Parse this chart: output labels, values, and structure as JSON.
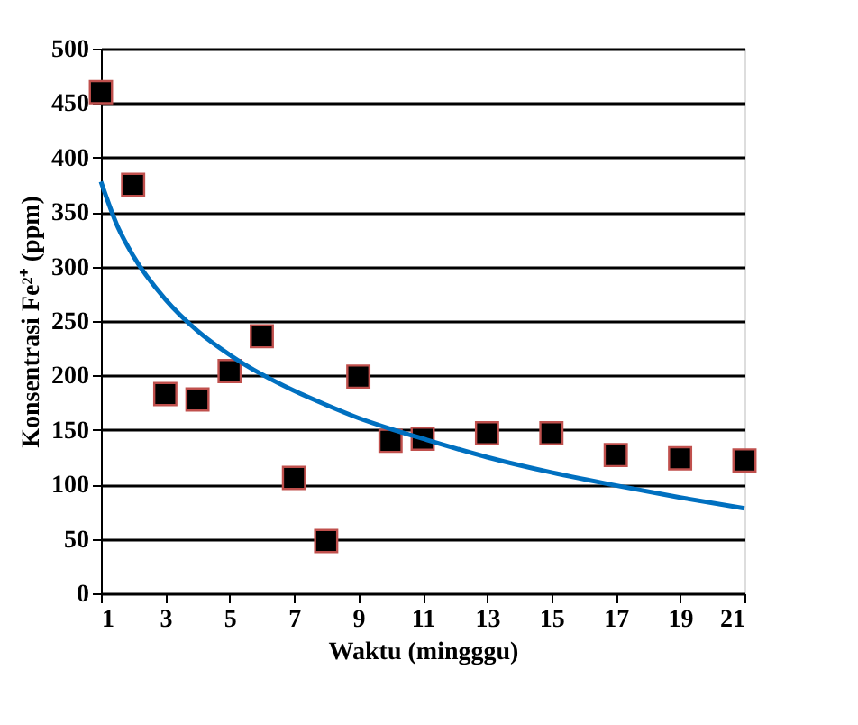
{
  "chart_data": {
    "type": "scatter",
    "xlabel": "Waktu (mingggu)",
    "ylabel": "Konsentrasi Fe²⁺ (ppm)",
    "xlim": [
      1,
      21
    ],
    "xticks": [
      1,
      3,
      5,
      7,
      9,
      11,
      13,
      15,
      17,
      19,
      21
    ],
    "ylim": [
      0,
      500
    ],
    "yticks": [
      0,
      50,
      100,
      150,
      200,
      250,
      300,
      350,
      400,
      450,
      500
    ],
    "grid": "y",
    "marker": "square",
    "series": [
      {
        "color": "#000000",
        "x": [
          1,
          2,
          3,
          4,
          5,
          6,
          7,
          8,
          9,
          10,
          11,
          13,
          15,
          17,
          19,
          21
        ],
        "values": [
          460,
          375,
          183,
          178,
          204,
          236,
          106,
          48,
          199,
          140,
          142,
          147,
          147,
          127,
          124,
          122
        ]
      },
      {
        "type": "line",
        "color": "#0070c0",
        "marker": "none",
        "x": [
          1,
          1.5,
          2,
          3,
          4,
          5,
          6,
          7,
          8,
          9,
          10,
          11,
          13,
          15,
          17,
          19,
          21
        ],
        "values": [
          378,
          338,
          310,
          270,
          241,
          219,
          201,
          186,
          173,
          161,
          151,
          142,
          125,
          111,
          99,
          88,
          78
        ]
      }
    ]
  }
}
